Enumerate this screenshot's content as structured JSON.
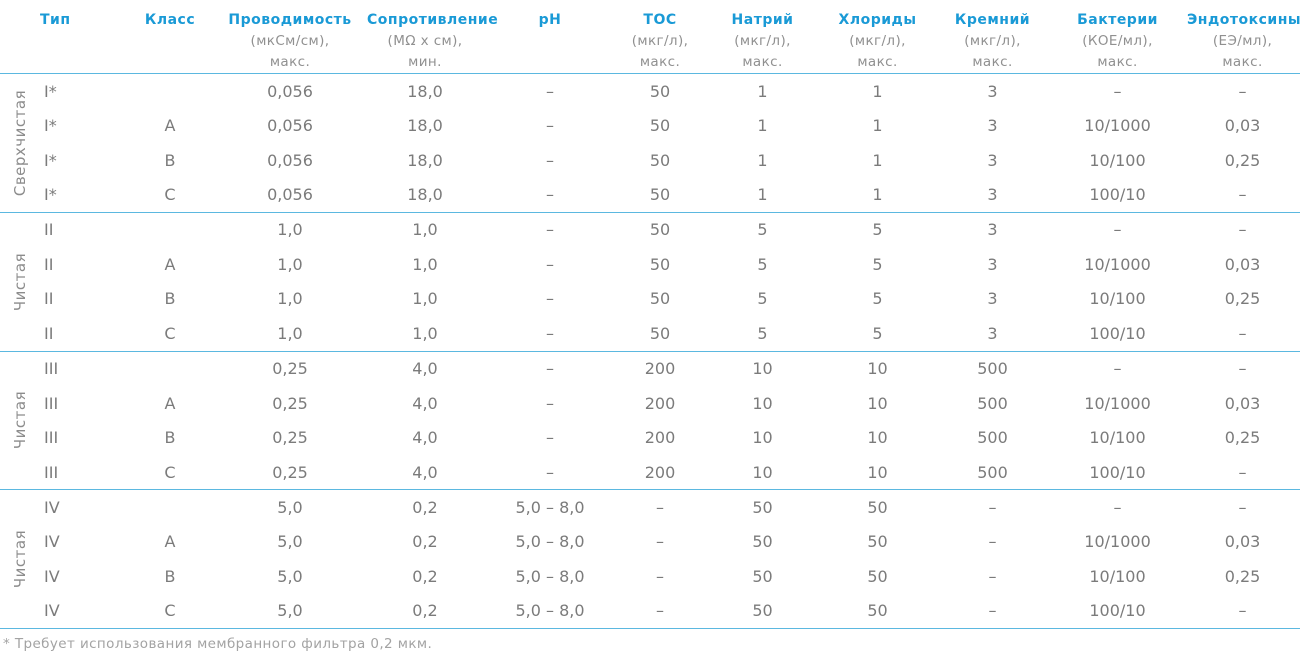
{
  "headers": [
    {
      "name": "Тип",
      "unit": "",
      "unit2": ""
    },
    {
      "name": "Класс",
      "unit": "",
      "unit2": ""
    },
    {
      "name": "Проводимость",
      "unit": "(мкСм/см),",
      "unit2": "макс."
    },
    {
      "name": "Сопротивление",
      "unit": "(МΩ х см),",
      "unit2": "мин."
    },
    {
      "name": "pH",
      "unit": "",
      "unit2": ""
    },
    {
      "name": "TOC",
      "unit": "(мкг/л),",
      "unit2": "макс."
    },
    {
      "name": "Натрий",
      "unit": "(мкг/л),",
      "unit2": "макс."
    },
    {
      "name": "Хлориды",
      "unit": "(мкг/л),",
      "unit2": "макс."
    },
    {
      "name": "Кремний",
      "unit": "(мкг/л),",
      "unit2": "макс."
    },
    {
      "name": "Бактерии",
      "unit": "(КОЕ/мл),",
      "unit2": "макс."
    },
    {
      "name": "Эндотоксины",
      "unit": "(ЕЭ/мл),",
      "unit2": "макс."
    }
  ],
  "groups": [
    {
      "label": "Сверхчистая",
      "rows": [
        [
          "I*",
          "",
          "0,056",
          "18,0",
          "–",
          "50",
          "1",
          "1",
          "3",
          "–",
          "–"
        ],
        [
          "I*",
          "A",
          "0,056",
          "18,0",
          "–",
          "50",
          "1",
          "1",
          "3",
          "10/1000",
          "0,03"
        ],
        [
          "I*",
          "B",
          "0,056",
          "18,0",
          "–",
          "50",
          "1",
          "1",
          "3",
          "10/100",
          "0,25"
        ],
        [
          "I*",
          "C",
          "0,056",
          "18,0",
          "–",
          "50",
          "1",
          "1",
          "3",
          "100/10",
          "–"
        ]
      ]
    },
    {
      "label": "Чистая",
      "rows": [
        [
          "II",
          "",
          "1,0",
          "1,0",
          "–",
          "50",
          "5",
          "5",
          "3",
          "–",
          "–"
        ],
        [
          "II",
          "A",
          "1,0",
          "1,0",
          "–",
          "50",
          "5",
          "5",
          "3",
          "10/1000",
          "0,03"
        ],
        [
          "II",
          "B",
          "1,0",
          "1,0",
          "–",
          "50",
          "5",
          "5",
          "3",
          "10/100",
          "0,25"
        ],
        [
          "II",
          "C",
          "1,0",
          "1,0",
          "–",
          "50",
          "5",
          "5",
          "3",
          "100/10",
          "–"
        ]
      ]
    },
    {
      "label": "Чистая",
      "rows": [
        [
          "III",
          "",
          "0,25",
          "4,0",
          "–",
          "200",
          "10",
          "10",
          "500",
          "–",
          "–"
        ],
        [
          "III",
          "A",
          "0,25",
          "4,0",
          "–",
          "200",
          "10",
          "10",
          "500",
          "10/1000",
          "0,03"
        ],
        [
          "III",
          "B",
          "0,25",
          "4,0",
          "–",
          "200",
          "10",
          "10",
          "500",
          "10/100",
          "0,25"
        ],
        [
          "III",
          "C",
          "0,25",
          "4,0",
          "–",
          "200",
          "10",
          "10",
          "500",
          "100/10",
          "–"
        ]
      ]
    },
    {
      "label": "Чистая",
      "rows": [
        [
          "IV",
          "",
          "5,0",
          "0,2",
          "5,0 – 8,0",
          "–",
          "50",
          "50",
          "–",
          "–",
          "–"
        ],
        [
          "IV",
          "A",
          "5,0",
          "0,2",
          "5,0 – 8,0",
          "–",
          "50",
          "50",
          "–",
          "10/1000",
          "0,03"
        ],
        [
          "IV",
          "B",
          "5,0",
          "0,2",
          "5,0 – 8,0",
          "–",
          "50",
          "50",
          "–",
          "10/100",
          "0,25"
        ],
        [
          "IV",
          "C",
          "5,0",
          "0,2",
          "5,0 – 8,0",
          "–",
          "50",
          "50",
          "–",
          "100/10",
          "–"
        ]
      ]
    }
  ],
  "footnote": "* Требует использования мембранного фильтра 0,2 мкм."
}
